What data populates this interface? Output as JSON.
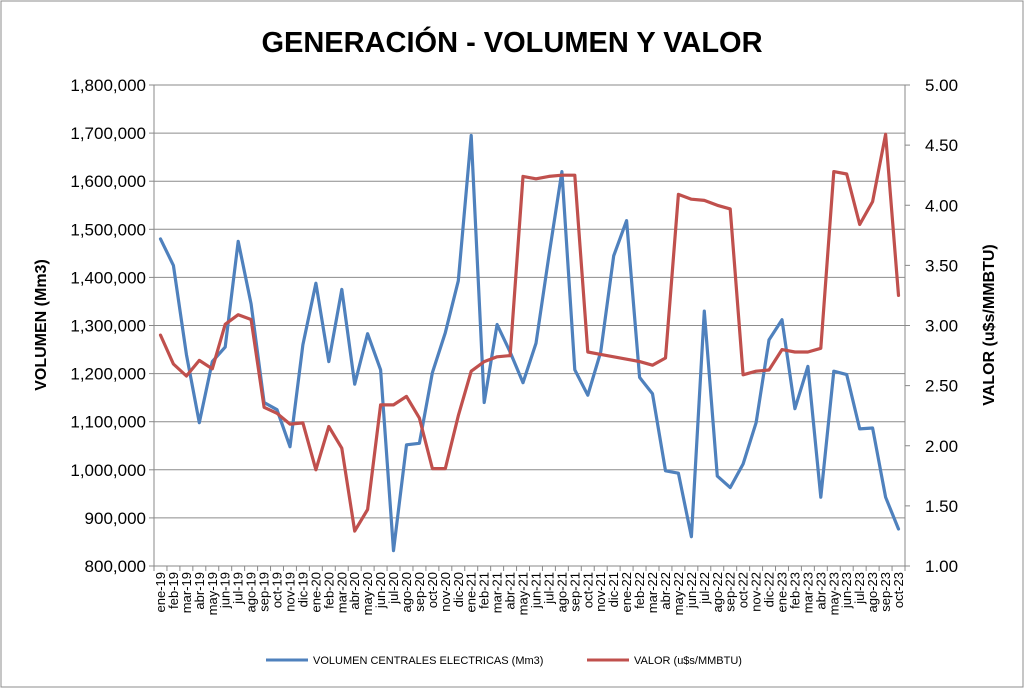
{
  "chart_data": {
    "type": "line",
    "title": "GENERACIÓN - VOLUMEN Y VALOR",
    "ylabel": "VOLUMEN (Mm3)",
    "y2label": "VALOR (u$s/MMBTU)",
    "xlabel": "",
    "ylim": [
      800000,
      1800000
    ],
    "y2lim": [
      1.0,
      5.0
    ],
    "y_ticks": [
      "800,000",
      "900,000",
      "1,000,000",
      "1,100,000",
      "1,200,000",
      "1,300,000",
      "1,400,000",
      "1,500,000",
      "1,600,000",
      "1,700,000",
      "1,800,000"
    ],
    "y2_ticks": [
      "1.00",
      "1.50",
      "2.00",
      "2.50",
      "3.00",
      "3.50",
      "4.00",
      "4.50",
      "5.00"
    ],
    "grid": true,
    "legend_position": "bottom",
    "categories": [
      "ene-19",
      "feb-19",
      "mar-19",
      "abr-19",
      "may-19",
      "jun-19",
      "jul-19",
      "ago-19",
      "sep-19",
      "oct-19",
      "nov-19",
      "dic-19",
      "ene-20",
      "feb-20",
      "mar-20",
      "abr-20",
      "may-20",
      "jun-20",
      "jul-20",
      "ago-20",
      "sep-20",
      "oct-20",
      "nov-20",
      "dic-20",
      "ene-21",
      "feb-21",
      "mar-21",
      "abr-21",
      "may-21",
      "jun-21",
      "jul-21",
      "ago-21",
      "sep-21",
      "oct-21",
      "nov-21",
      "dic-21",
      "ene-22",
      "feb-22",
      "mar-22",
      "abr-22",
      "may-22",
      "jun-22",
      "jul-22",
      "ago-22",
      "sep-22",
      "oct-22",
      "nov-22",
      "dic-22",
      "ene-23",
      "feb-23",
      "mar-23",
      "abr-23",
      "may-23",
      "jun-23",
      "jul-23",
      "ago-23",
      "sep-23",
      "oct-23"
    ],
    "series": [
      {
        "name": "VOLUMEN CENTRALES ELECTRICAS (Mm3)",
        "axis": "left",
        "color": "#4F81BD",
        "values": [
          1480000,
          1425000,
          1240000,
          1098000,
          1225000,
          1255000,
          1475000,
          1345000,
          1140000,
          1125000,
          1048000,
          1260000,
          1388000,
          1225000,
          1375000,
          1178000,
          1283000,
          1208000,
          832000,
          1052000,
          1055000,
          1202000,
          1285000,
          1393000,
          1695000,
          1140000,
          1302000,
          1245000,
          1181000,
          1263000,
          1445000,
          1620000,
          1208000,
          1155000,
          1245000,
          1445000,
          1518000,
          1192000,
          1158000,
          998000,
          993000,
          861000,
          1330000,
          987000,
          963000,
          1012000,
          1098000,
          1270000,
          1312000,
          1127000,
          1215000,
          943000,
          1205000,
          1198000,
          1085000,
          1087000,
          943000,
          877000
        ]
      },
      {
        "name": "VALOR (u$s/MMBTU)",
        "axis": "right",
        "color": "#C0504D",
        "values": [
          2.92,
          2.68,
          2.58,
          2.71,
          2.64,
          3.01,
          3.09,
          3.05,
          2.32,
          2.27,
          2.18,
          2.19,
          1.8,
          2.16,
          1.98,
          1.29,
          1.47,
          2.34,
          2.34,
          2.41,
          2.23,
          1.81,
          1.81,
          2.25,
          2.62,
          2.7,
          2.74,
          2.75,
          4.24,
          4.22,
          4.24,
          4.25,
          4.25,
          2.78,
          2.76,
          2.74,
          2.72,
          2.7,
          2.67,
          2.73,
          4.09,
          4.05,
          4.04,
          4.0,
          3.97,
          2.59,
          2.62,
          2.63,
          2.8,
          2.78,
          2.78,
          2.81,
          4.28,
          4.26,
          3.84,
          4.03,
          4.59,
          3.25
        ]
      }
    ]
  }
}
